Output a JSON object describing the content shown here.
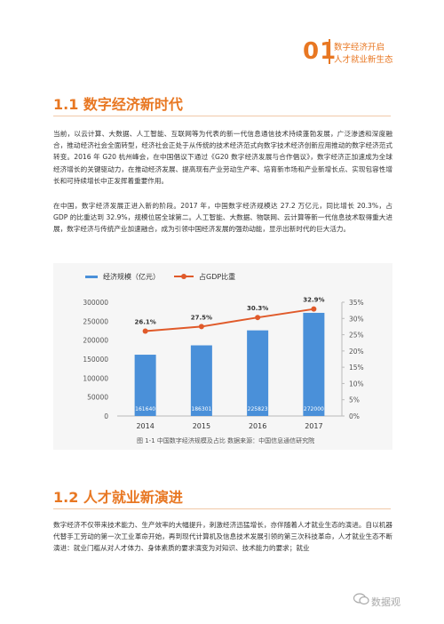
{
  "header": {
    "number": "01",
    "line1": "数字经济开启",
    "line2": "人才就业新生态"
  },
  "section1": {
    "title": "1.1 数字经济新时代",
    "para1": "当前，以云计算、大数据、人工智能、互联网等为代表的新一代信息通信技术持续蓬勃发展，广泛渗透和深度融合，推动经济社会全面转型，经济社会正处于从传统的技术经济范式向数字技术经济创新应用推动的数字经济范式转变。2016 年 G20 杭州峰会，在中国倡议下通过《G20 数字经济发展与合作倡议》，数字经济正加速成为全球经济增长的关键驱动力，在推动经济发展、提高现有产业劳动生产率、培育新市场和产业新增长点、实现包容性增长和可持续增长中正发挥着重要作用。",
    "para2": "在中国，数字经济发展正进入新的阶段。2017 年，中国数字经济规模达 27.2 万亿元，同比增长 20.3%，占 GDP 的比重达到 32.9%，规模位居全球第二。人工智能、大数据、物联网、云计算等新一代信息技术取得重大进展，数字经济与传统产业加速融合，成为引领中国经济发展的强劲动能，显示出新时代的巨大活力。"
  },
  "chart_data": {
    "type": "bar",
    "title": "",
    "categories": [
      "2014",
      "2015",
      "2016",
      "2017"
    ],
    "series": [
      {
        "name": "经济规模（亿元）",
        "type": "bar",
        "axis": "left",
        "values": [
          161640,
          186301,
          225823,
          272000
        ],
        "labels": [
          "161640",
          "186301",
          "225823",
          "272000"
        ],
        "color": "#4a90d9"
      },
      {
        "name": "占GDP比重",
        "type": "line",
        "axis": "right",
        "values": [
          26.1,
          27.5,
          30.3,
          32.9
        ],
        "labels": [
          "26.1%",
          "27.5%",
          "30.3%",
          "32.9%"
        ],
        "color": "#e05a2a"
      }
    ],
    "yleft": {
      "min": 0,
      "max": 300000,
      "ticks": [
        "0",
        "50000",
        "100000",
        "150000",
        "200000",
        "250000",
        "300000"
      ]
    },
    "yright": {
      "min": 0,
      "max": 35,
      "ticks": [
        "0%",
        "5%",
        "10%",
        "15%",
        "20%",
        "25%",
        "30%",
        "35%"
      ]
    },
    "legend_position": "top-left",
    "grid": false
  },
  "caption": "图 1-1  中国数字经济规模及占比  数据来源：中国信息通信研究院",
  "section2": {
    "title": "1.2 人才就业新演进",
    "para1": "数字经济不仅带来技术能力、生产效率的大幅提升，刺激经济迅猛增长，亦伴随着人才就业生态的演进。自以机器代替手工劳动的第一次工业革命开始，再到现代计算机及信息技术发展引领的第三次科技革命，人才就业生态不断演进：就业门槛从对人才体力、身体素质的要求演变为对知识、技术能力的要求；就业"
  },
  "watermark": "数据观"
}
